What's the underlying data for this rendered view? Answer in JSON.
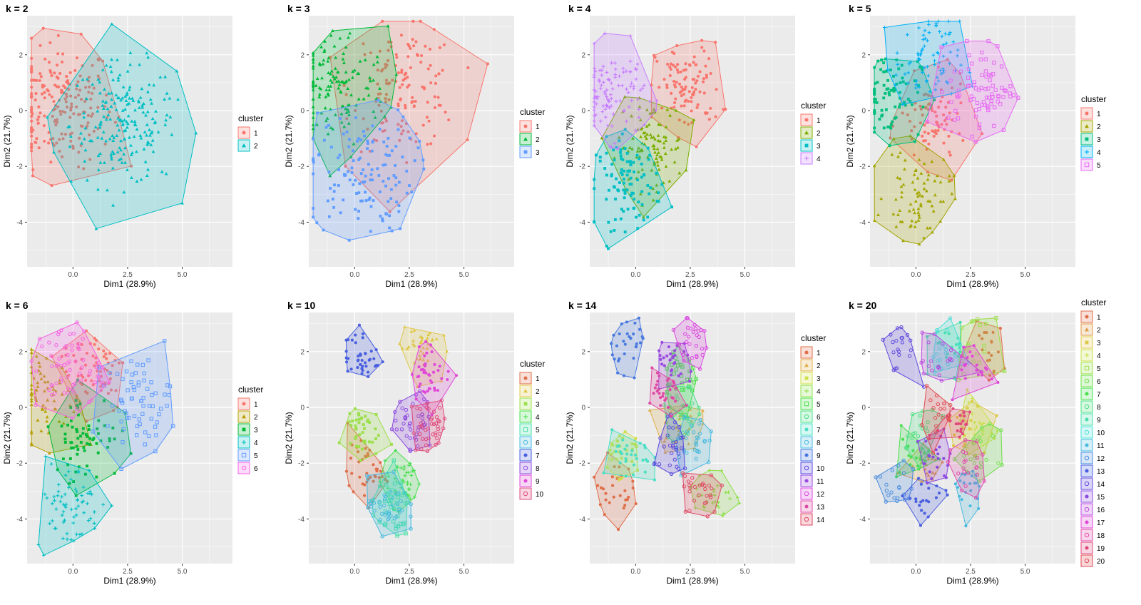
{
  "chart_data": {
    "type": "scatter",
    "xlabel": "Dim1 (28.9%)",
    "ylabel": "Dim2 (21.7%)",
    "xlim": [
      -2.1,
      7.3
    ],
    "ylim": [
      -5.6,
      3.4
    ],
    "x_ticks": [
      0.0,
      2.5,
      5.0
    ],
    "x_tick_labels": [
      "0.0",
      "2.5",
      "5.0"
    ],
    "y_ticks": [
      2,
      0,
      -2,
      -4
    ],
    "y_tick_labels": [
      "2",
      "0",
      "-2",
      "-4"
    ],
    "legend_title": "cluster",
    "legend_position": "right",
    "grid": true,
    "panels": [
      {
        "title": "k = 2",
        "k": 2,
        "labels": [
          "1",
          "2"
        ]
      },
      {
        "title": "k = 3",
        "k": 3,
        "labels": [
          "1",
          "2",
          "3"
        ]
      },
      {
        "title": "k = 4",
        "k": 4,
        "labels": [
          "1",
          "2",
          "3",
          "4"
        ]
      },
      {
        "title": "k = 5",
        "k": 5,
        "labels": [
          "1",
          "2",
          "3",
          "4",
          "5"
        ]
      },
      {
        "title": "k = 6",
        "k": 6,
        "labels": [
          "1",
          "2",
          "3",
          "4",
          "5",
          "6"
        ]
      },
      {
        "title": "k = 10",
        "k": 10,
        "labels": [
          "1",
          "2",
          "3",
          "4",
          "5",
          "6",
          "7",
          "8",
          "9",
          "10"
        ]
      },
      {
        "title": "k = 14",
        "k": 14,
        "labels": [
          "1",
          "2",
          "3",
          "4",
          "5",
          "6",
          "7",
          "8",
          "9",
          "10",
          "11",
          "12",
          "13",
          "14"
        ]
      },
      {
        "title": "k = 20",
        "k": 20,
        "labels": [
          "1",
          "2",
          "3",
          "4",
          "5",
          "6",
          "7",
          "8",
          "9",
          "10",
          "11",
          "12",
          "13",
          "14",
          "15",
          "16",
          "17",
          "18",
          "19",
          "20"
        ]
      }
    ],
    "colors": {
      "k2": [
        "#F8766D",
        "#00BFC4"
      ],
      "k3": [
        "#F8766D",
        "#00BA38",
        "#619CFF"
      ],
      "k4": [
        "#F8766D",
        "#7CAE00",
        "#00BFC4",
        "#C77CFF"
      ],
      "k5": [
        "#F8766D",
        "#A3A500",
        "#00BF7D",
        "#00B0F6",
        "#E76BF3"
      ],
      "k6": [
        "#F8766D",
        "#B79F00",
        "#00BA38",
        "#00BFC4",
        "#619CFF",
        "#F564E3"
      ]
    }
  }
}
